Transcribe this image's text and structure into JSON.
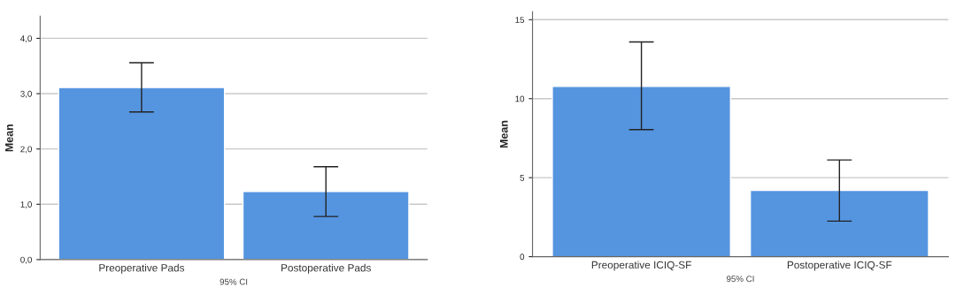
{
  "chart_data": [
    {
      "type": "bar",
      "categories": [
        "Preoperative Pads",
        "Postoperative Pads"
      ],
      "values": [
        3.11,
        1.23
      ],
      "errors": [
        [
          2.67,
          3.56
        ],
        [
          0.78,
          1.68
        ]
      ],
      "color": "#5595e0",
      "ylabel": "Mean",
      "xlabel": "95% CI",
      "ylim": [
        0,
        4.4
      ],
      "yticks": [
        {
          "value": 0,
          "label": "0,0"
        },
        {
          "value": 1,
          "label": "1,0"
        },
        {
          "value": 2,
          "label": "2,0"
        },
        {
          "value": 3,
          "label": "3,0"
        },
        {
          "value": 4,
          "label": "4,0"
        }
      ],
      "grid": "y"
    },
    {
      "type": "bar",
      "categories": [
        "Preoperative ICIQ-SF",
        "Postoperative ICIQ-SF"
      ],
      "values": [
        10.78,
        4.19
      ],
      "errors": [
        [
          8.04,
          13.59
        ],
        [
          2.25,
          6.12
        ]
      ],
      "color": "#5595e0",
      "ylabel": "Mean",
      "xlabel": "95% CI",
      "ylim": [
        0,
        15.5
      ],
      "yticks": [
        0,
        5,
        10,
        15
      ],
      "grid": "y"
    }
  ]
}
